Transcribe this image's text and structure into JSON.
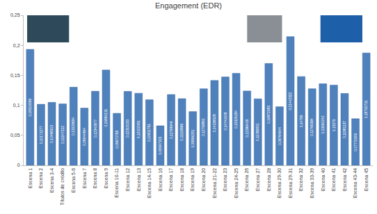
{
  "chart_data": {
    "type": "bar",
    "title": "Engagement (EDR)",
    "categories": [
      "Escena 1",
      "Escena 2",
      "Escena 3-4",
      "Títulos de crédito",
      "Escena 5-6",
      "Escena 7",
      "Escena 8",
      "Escena 9",
      "Escena 10-11",
      "Escena 12",
      "Escena 13",
      "Escena 14-15",
      "Escena 16",
      "Escena 17",
      "Escena 18",
      "Escena 19",
      "Escena 20",
      "Escena 21-22",
      "Escena 23",
      "Escena 24-25",
      "Escena 26",
      "Escena 27",
      "Escena 28",
      "Escena 29-30",
      "Escena 29-31",
      "Escena 32",
      "Escena 33-39",
      "Escena 40",
      "Escena 41",
      "Escena 42",
      "Escena 43-44",
      "Escena 45"
    ],
    "values": [
      0.19315596,
      0.10171277,
      0.10496313,
      0.10247222,
      0.13029684,
      0.09544964,
      0.12340977,
      0.15890131,
      0.08670788,
      0.12315133,
      0.12022081,
      0.10931791,
      0.06597303,
      0.11799949,
      0.11118866,
      0.08956281,
      0.12756861,
      0.14136528,
      0.14741508,
      0.15326184,
      0.12396408,
      0.11086831,
      0.16972083,
      0.09764644,
      0.21442322,
      0.14795,
      0.12766364,
      0.13590242,
      0.13375,
      0.11981137,
      0.07771905,
      0.18730731
    ],
    "value_labels": [
      "0,19315596",
      "0,10171277",
      "0,10496313",
      "0,10247222",
      "0,13029684",
      "0,09544964",
      "0,12340977",
      "0,15890131",
      "0,08670788",
      "0,12315133",
      "0,12022081",
      "0,10931791",
      "0,06597303",
      "0,11799949",
      "0,11118866",
      "0,08956281",
      "0,12756861",
      "0,14136528",
      "0,14741508",
      "0,15326184",
      "0,12396408",
      "0,11086831",
      "0,16972083",
      "0,09764644",
      "0,21442322",
      "0,14795",
      "0,12766364",
      "0,13590242",
      "0,13375",
      "0,11981137",
      "0,07771905",
      "0,18730731"
    ],
    "color": "#4f81bd",
    "data_labels": true,
    "grid": false,
    "ylim": [
      0,
      0.25
    ],
    "yticks": [
      0,
      {
        "value": 0.05,
        "label": "0,05"
      },
      {
        "value": 0.1,
        "label": "0,1"
      },
      {
        "value": 0.15,
        "label": "0,15"
      },
      {
        "value": 0.2,
        "label": "0,2"
      },
      {
        "value": 0.25,
        "label": "0,25"
      }
    ]
  }
}
